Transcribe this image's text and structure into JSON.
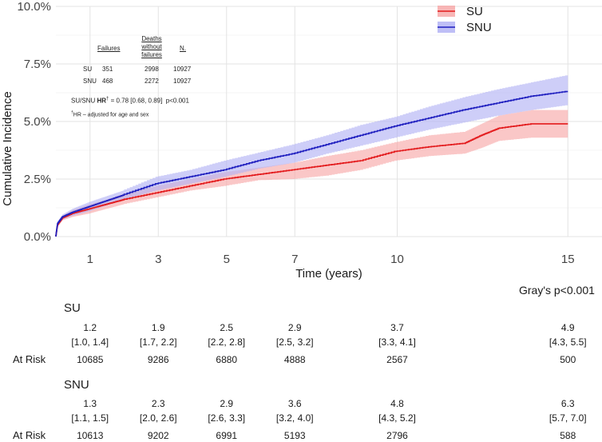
{
  "chart_data": {
    "type": "line",
    "title": "",
    "xlabel": "Time (years)",
    "ylabel": "Cumulative Incidence",
    "xlim": [
      0,
      16
    ],
    "ylim": [
      0,
      10
    ],
    "x_ticks": [
      1,
      3,
      5,
      7,
      10,
      15
    ],
    "x_tick_labels": [
      "1",
      "3",
      "5",
      "7",
      "10",
      "15"
    ],
    "y_ticks": [
      0,
      2.5,
      5,
      7.5,
      10
    ],
    "y_tick_labels": [
      "0.0%",
      "2.5%",
      "5.0%",
      "7.5%",
      "10.0%"
    ],
    "legend_position": "top-right",
    "series": [
      {
        "name": "SU",
        "color": "#e31a1c",
        "band_color": "#f7a9a9",
        "x": [
          0,
          0.05,
          0.2,
          0.5,
          1,
          1.5,
          2,
          3,
          4,
          5,
          6,
          7,
          8,
          9,
          10,
          11,
          12,
          12.5,
          13,
          14,
          15
        ],
        "values": [
          0,
          0.5,
          0.8,
          1.0,
          1.2,
          1.4,
          1.6,
          1.9,
          2.2,
          2.5,
          2.7,
          2.9,
          3.1,
          3.3,
          3.7,
          3.9,
          4.05,
          4.4,
          4.7,
          4.9,
          4.9
        ],
        "lower": [
          0,
          0.4,
          0.7,
          0.85,
          1.0,
          1.2,
          1.4,
          1.7,
          2.0,
          2.2,
          2.45,
          2.5,
          2.65,
          2.9,
          3.3,
          3.5,
          3.6,
          3.85,
          4.15,
          4.3,
          4.3
        ],
        "upper": [
          0,
          0.6,
          0.9,
          1.15,
          1.4,
          1.6,
          1.85,
          2.2,
          2.5,
          2.8,
          3.0,
          3.2,
          3.5,
          3.75,
          4.1,
          4.4,
          4.55,
          4.9,
          5.25,
          5.5,
          5.5
        ]
      },
      {
        "name": "SNU",
        "color": "#1f1fbf",
        "band_color": "#b3b3f5",
        "x": [
          0,
          0.05,
          0.2,
          0.5,
          1,
          1.5,
          2,
          3,
          4,
          5,
          6,
          7,
          8,
          9,
          10,
          11,
          12,
          13,
          14,
          15
        ],
        "values": [
          0,
          0.55,
          0.85,
          1.05,
          1.3,
          1.55,
          1.8,
          2.3,
          2.6,
          2.9,
          3.3,
          3.6,
          4.0,
          4.4,
          4.8,
          5.15,
          5.5,
          5.8,
          6.1,
          6.3
        ],
        "lower": [
          0,
          0.45,
          0.75,
          0.9,
          1.1,
          1.35,
          1.6,
          2.0,
          2.3,
          2.6,
          2.95,
          3.2,
          3.6,
          3.95,
          4.3,
          4.65,
          4.95,
          5.25,
          5.5,
          5.7
        ],
        "upper": [
          0,
          0.65,
          0.95,
          1.2,
          1.5,
          1.75,
          2.0,
          2.6,
          2.9,
          3.3,
          3.65,
          4.0,
          4.4,
          4.85,
          5.2,
          5.65,
          6.05,
          6.4,
          6.7,
          7.0
        ]
      }
    ],
    "annotations": {
      "p_value": "Gray's p<0.001"
    }
  },
  "summary_table": {
    "headers": [
      "Failures",
      "Deaths without failures",
      "N."
    ],
    "rows": [
      {
        "group": "SU",
        "failures": "351",
        "deaths": "2998",
        "n": "10927"
      },
      {
        "group": "SNU",
        "failures": "468",
        "deaths": "2272",
        "n": "10927"
      }
    ],
    "hr_prefix": "SU/SNU",
    "hr_label": "HR",
    "hr_sup": "†",
    "hr_value": "= 0.78 [0.68, 0.89]",
    "hr_p": "p<0.001",
    "footnote_sup": "†",
    "footnote": "HR – adjusted for age and sex"
  },
  "risk_tables": [
    {
      "group": "SU",
      "at_risk_label": "At Risk",
      "estimates": [
        "1.2",
        "1.9",
        "2.5",
        "2.9",
        "3.7",
        "4.9"
      ],
      "cis": [
        "[1.0, 1.4]",
        "[1.7, 2.2]",
        "[2.2, 2.8]",
        "[2.5, 3.2]",
        "[3.3, 4.1]",
        "[4.3, 5.5]"
      ],
      "at_risk": [
        "10685",
        "9286",
        "6880",
        "4888",
        "2567",
        "500"
      ]
    },
    {
      "group": "SNU",
      "at_risk_label": "At Risk",
      "estimates": [
        "1.3",
        "2.3",
        "2.9",
        "3.6",
        "4.8",
        "6.3"
      ],
      "cis": [
        "[1.1, 1.5]",
        "[2.0, 2.6]",
        "[2.6, 3.3]",
        "[3.2, 4.0]",
        "[4.3, 5.2]",
        "[5.7, 7.0]"
      ],
      "at_risk": [
        "10613",
        "9202",
        "6991",
        "5193",
        "2796",
        "588"
      ]
    }
  ]
}
